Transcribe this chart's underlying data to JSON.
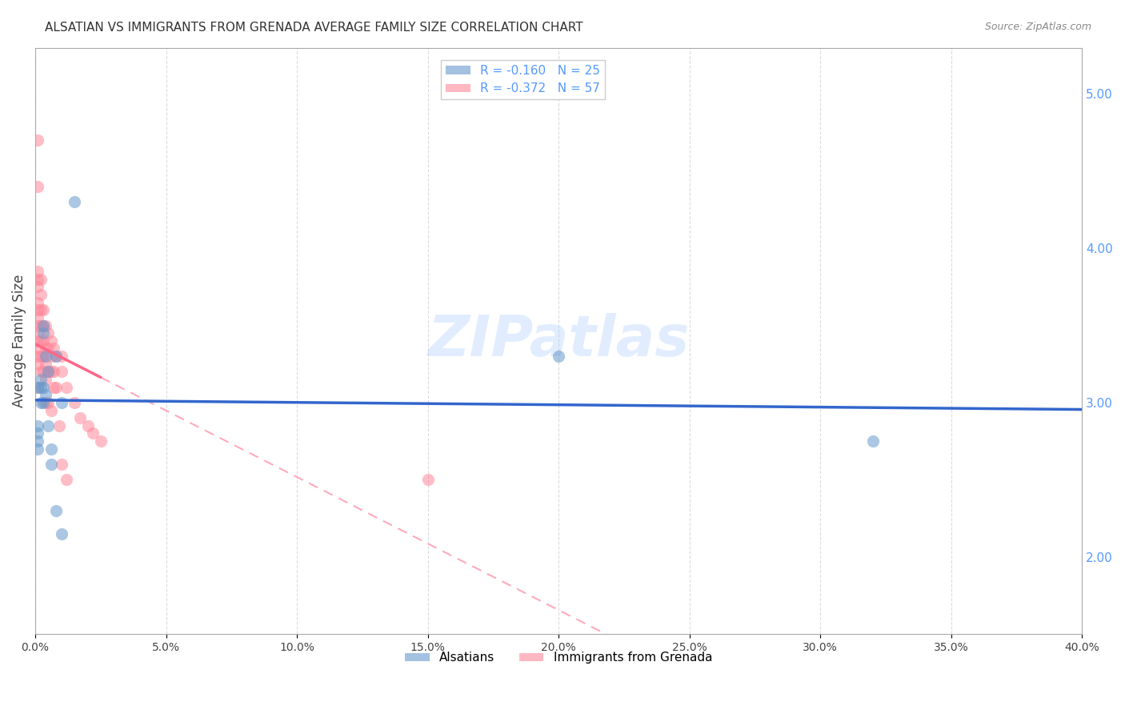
{
  "title": "ALSATIAN VS IMMIGRANTS FROM GRENADA AVERAGE FAMILY SIZE CORRELATION CHART",
  "source": "Source: ZipAtlas.com",
  "ylabel": "Average Family Size",
  "yticks": [
    2.0,
    3.0,
    4.0,
    5.0
  ],
  "xlim": [
    0.0,
    0.4
  ],
  "ylim": [
    1.5,
    5.3
  ],
  "watermark": "ZIPatlas",
  "alsatians_x": [
    0.001,
    0.001,
    0.001,
    0.001,
    0.001,
    0.002,
    0.002,
    0.002,
    0.003,
    0.003,
    0.003,
    0.003,
    0.004,
    0.004,
    0.005,
    0.005,
    0.006,
    0.006,
    0.008,
    0.008,
    0.01,
    0.01,
    0.015,
    0.2,
    0.32
  ],
  "alsatians_y": [
    3.1,
    2.85,
    2.8,
    2.75,
    2.7,
    3.15,
    3.1,
    3.0,
    3.5,
    3.45,
    3.1,
    3.0,
    3.3,
    3.05,
    3.2,
    2.85,
    2.7,
    2.6,
    3.3,
    2.3,
    3.0,
    2.15,
    4.3,
    3.3,
    2.75
  ],
  "grenada_x": [
    0.001,
    0.001,
    0.001,
    0.001,
    0.001,
    0.001,
    0.001,
    0.001,
    0.001,
    0.001,
    0.001,
    0.001,
    0.001,
    0.001,
    0.001,
    0.002,
    0.002,
    0.002,
    0.002,
    0.002,
    0.002,
    0.002,
    0.003,
    0.003,
    0.003,
    0.003,
    0.003,
    0.004,
    0.004,
    0.004,
    0.004,
    0.004,
    0.005,
    0.005,
    0.005,
    0.005,
    0.006,
    0.006,
    0.006,
    0.006,
    0.007,
    0.007,
    0.007,
    0.008,
    0.008,
    0.009,
    0.01,
    0.01,
    0.01,
    0.012,
    0.012,
    0.015,
    0.017,
    0.02,
    0.022,
    0.025,
    0.15
  ],
  "grenada_y": [
    4.7,
    4.4,
    3.85,
    3.8,
    3.75,
    3.65,
    3.6,
    3.55,
    3.5,
    3.45,
    3.4,
    3.35,
    3.3,
    3.25,
    3.1,
    3.8,
    3.7,
    3.6,
    3.5,
    3.4,
    3.3,
    3.2,
    3.6,
    3.5,
    3.4,
    3.3,
    3.2,
    3.5,
    3.35,
    3.25,
    3.15,
    3.0,
    3.45,
    3.35,
    3.2,
    3.0,
    3.4,
    3.3,
    3.2,
    2.95,
    3.35,
    3.2,
    3.1,
    3.3,
    3.1,
    2.85,
    3.3,
    3.2,
    2.6,
    3.1,
    2.5,
    3.0,
    2.9,
    2.85,
    2.8,
    2.75,
    2.5
  ],
  "R_alsatians": -0.16,
  "N_alsatians": 25,
  "R_grenada": -0.372,
  "N_grenada": 57,
  "color_alsatians": "#6699CC",
  "color_grenada": "#FF8899",
  "color_trend_alsatians": "#3366CC",
  "color_trend_grenada": "#FF6688",
  "color_trend_grenada_dashed": "#FFAABB",
  "background_color": "#FFFFFF",
  "grid_color": "#CCCCCC",
  "right_axis_color": "#5599FF",
  "title_color": "#333333"
}
